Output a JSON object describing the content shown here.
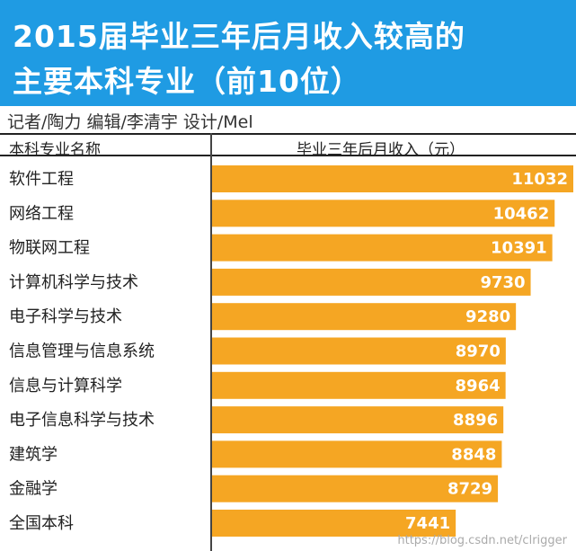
{
  "colors": {
    "header_bg": "#1f9be3",
    "bar": "#f5a623",
    "value_text": "#ffffff"
  },
  "header": {
    "title_line_1": "2015届毕业三年后月收入较高的",
    "title_line_2": "主要本科专业（前10位）"
  },
  "credits": "记者/陶力  编辑/李清宇  设计/Mel",
  "table": {
    "left_header": "本科专业名称",
    "right_header": "毕业三年后月收入（元）"
  },
  "watermark": "https://blog.csdn.net/clrigger",
  "chart_data": {
    "type": "bar",
    "orientation": "horizontal",
    "categories": [
      "软件工程",
      "网络工程",
      "物联网工程",
      "计算机科学与技术",
      "电子科学与技术",
      "信息管理与信息系统",
      "信息与计算科学",
      "电子信息科学与技术",
      "建筑学",
      "金融学",
      "全国本科"
    ],
    "values": [
      11032,
      10462,
      10391,
      9730,
      9280,
      8970,
      8964,
      8896,
      8848,
      8729,
      7441
    ],
    "title": "2015届毕业三年后月收入较高的主要本科专业（前10位）",
    "xlabel": "毕业三年后月收入（元）",
    "ylabel": "本科专业名称",
    "xlim": [
      0,
      11032
    ],
    "grid": false
  }
}
